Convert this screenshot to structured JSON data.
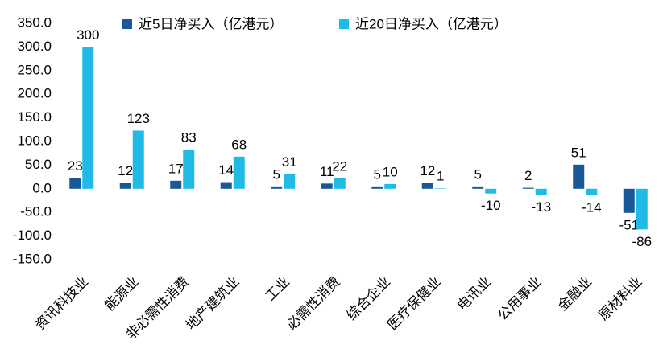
{
  "chart_data": {
    "type": "bar",
    "categories": [
      "资讯科技业",
      "能源业",
      "非必需性消费",
      "地产建筑业",
      "工业",
      "必需性消费",
      "综合企业",
      "医疗保健业",
      "电讯业",
      "公用事业",
      "金融业",
      "原材料业"
    ],
    "series": [
      {
        "name": "近5日净买入（亿港元）",
        "color": "#1a5796",
        "values": [
          23,
          12,
          17,
          14,
          5,
          11,
          5,
          12,
          5,
          2,
          51,
          -51
        ]
      },
      {
        "name": "近20日净买入（亿港元）",
        "color": "#1fbbe6",
        "values": [
          300,
          123,
          83,
          68,
          31,
          22,
          10,
          1,
          -10,
          -13,
          -14,
          -86
        ]
      }
    ],
    "ylim": [
      -150,
      350
    ],
    "yticks": [
      {
        "value": -150,
        "label": "-150.0"
      },
      {
        "value": -100,
        "label": "-100.0"
      },
      {
        "value": -50,
        "label": "-50.0"
      },
      {
        "value": 0,
        "label": "0.0"
      },
      {
        "value": 50,
        "label": "50.0"
      },
      {
        "value": 100,
        "label": "100.0"
      },
      {
        "value": 150,
        "label": "150.0"
      },
      {
        "value": 200,
        "label": "200.0"
      },
      {
        "value": 250,
        "label": "250.0"
      },
      {
        "value": 300,
        "label": "300.0"
      },
      {
        "value": 350,
        "label": "350.0"
      }
    ],
    "grid": false
  }
}
